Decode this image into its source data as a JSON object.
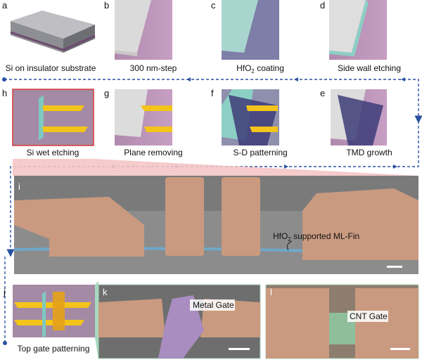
{
  "panels": [
    {
      "letter": "a",
      "caption": [
        "Si on insulator substrate"
      ]
    },
    {
      "letter": "b",
      "caption": [
        "300 nm-step"
      ]
    },
    {
      "letter": "c",
      "caption": [
        "HfO",
        "2",
        " coating"
      ]
    },
    {
      "letter": "d",
      "caption": [
        "Side wall etching"
      ]
    },
    {
      "letter": "h",
      "caption": [
        "Si wet etching"
      ]
    },
    {
      "letter": "g",
      "caption": [
        "Plane removing"
      ]
    },
    {
      "letter": "f",
      "caption": [
        "S-D patterning"
      ]
    },
    {
      "letter": "e",
      "caption": [
        "TMD growth"
      ]
    },
    {
      "letter": "i",
      "caption": [
        "HfO",
        "2",
        " supported ML-Fin"
      ]
    },
    {
      "letter": "j",
      "caption": [
        "Top gate patterning"
      ]
    },
    {
      "letter": "k",
      "caption": [
        "Metal Gate"
      ]
    },
    {
      "letter": "l",
      "caption": [
        "CNT Gate"
      ]
    }
  ]
}
